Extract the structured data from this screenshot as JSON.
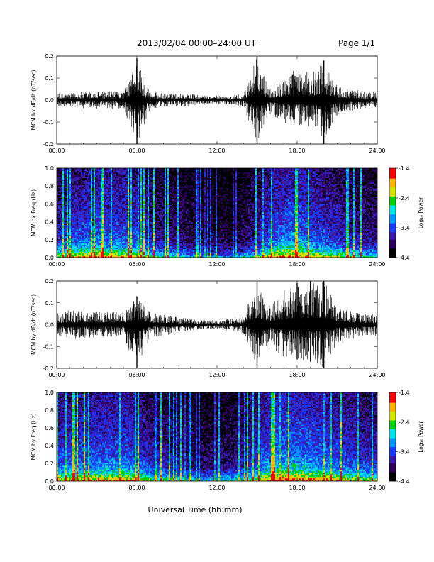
{
  "header": {
    "title": "2013/02/04  00:00–24:00 UT",
    "page": "Page 1/1"
  },
  "xlabel": "Universal Time (hh:mm)",
  "colors": {
    "trace": "#000000",
    "colorscale": [
      "#000000",
      "#2a005a",
      "#3a1aa8",
      "#1a3aff",
      "#0096ff",
      "#00e6e6",
      "#00d200",
      "#d2e600",
      "#ffb400",
      "#ff0000"
    ]
  },
  "chart_data": [
    {
      "type": "line",
      "ylabel": "MCM bx dB/dt (nT/sec)",
      "xlim": [
        0,
        24
      ],
      "ylim": [
        -0.2,
        0.2
      ],
      "xticks": [
        "00:00",
        "06:00",
        "12:00",
        "18:00",
        "24:00"
      ],
      "yticks": [
        "-0.2",
        "-0.1",
        "0.0",
        "0.1",
        "0.2"
      ],
      "series": [
        {
          "x": [
            0,
            1,
            2,
            3,
            4,
            5,
            6,
            7,
            8,
            9,
            10,
            11,
            12,
            13,
            14,
            15,
            16,
            17,
            18,
            19,
            20,
            21,
            22,
            23,
            24
          ],
          "y_max": [
            0.03,
            0.03,
            0.04,
            0.04,
            0.04,
            0.04,
            0.19,
            0.04,
            0.03,
            0.03,
            0.03,
            0.02,
            0.02,
            0.02,
            0.03,
            0.2,
            0.05,
            0.12,
            0.15,
            0.12,
            0.18,
            0.07,
            0.05,
            0.04,
            0.04
          ],
          "y_min": [
            -0.03,
            -0.03,
            -0.04,
            -0.04,
            -0.04,
            -0.04,
            -0.2,
            -0.04,
            -0.03,
            -0.03,
            -0.03,
            -0.02,
            -0.02,
            -0.02,
            -0.03,
            -0.2,
            -0.06,
            -0.11,
            -0.12,
            -0.13,
            -0.2,
            -0.07,
            -0.05,
            -0.04,
            -0.04
          ]
        }
      ]
    },
    {
      "type": "heatmap",
      "ylabel": "MCM bx Freq (Hz)",
      "xlim": [
        0,
        24
      ],
      "ylim": [
        0,
        1
      ],
      "xticks": [
        "00:00",
        "06:00",
        "12:00",
        "18:00",
        "24:00"
      ],
      "yticks": [
        "0.0",
        "0.2",
        "0.4",
        "0.6",
        "0.8",
        "1.0"
      ],
      "colorbar": {
        "label": "Log₁₀ Power",
        "range": [
          -4.4,
          -1.4
        ],
        "ticks": [
          "-1.4",
          "-2.4",
          "-3.4",
          "-4.4"
        ]
      },
      "activity_hours": [
        0.6,
        0.7,
        0.75,
        0.8,
        0.75,
        0.75,
        0.7,
        0.55,
        0.5,
        0.45,
        0.4,
        0.35,
        0.35,
        0.3,
        0.4,
        0.55,
        0.75,
        0.85,
        0.85,
        0.75,
        0.7,
        0.65,
        0.55,
        0.5,
        0.5
      ]
    },
    {
      "type": "line",
      "ylabel": "MCM by dB/dt (nT/sec)",
      "xlim": [
        0,
        24
      ],
      "ylim": [
        -0.2,
        0.2
      ],
      "xticks": [
        "00:00",
        "06:00",
        "12:00",
        "18:00",
        "24:00"
      ],
      "yticks": [
        "-0.2",
        "-0.1",
        "0.0",
        "0.1",
        "0.2"
      ],
      "series": [
        {
          "x": [
            0,
            1,
            2,
            3,
            4,
            5,
            6,
            7,
            8,
            9,
            10,
            11,
            12,
            13,
            14,
            15,
            16,
            17,
            18,
            19,
            20,
            21,
            22,
            23,
            24
          ],
          "y_max": [
            0.05,
            0.07,
            0.06,
            0.06,
            0.06,
            0.06,
            0.13,
            0.06,
            0.05,
            0.04,
            0.03,
            0.02,
            0.02,
            0.03,
            0.04,
            0.2,
            0.1,
            0.16,
            0.19,
            0.2,
            0.2,
            0.1,
            0.07,
            0.05,
            0.05
          ],
          "y_min": [
            -0.05,
            -0.07,
            -0.06,
            -0.06,
            -0.06,
            -0.06,
            -0.2,
            -0.06,
            -0.05,
            -0.04,
            -0.03,
            -0.02,
            -0.02,
            -0.03,
            -0.04,
            -0.2,
            -0.1,
            -0.15,
            -0.16,
            -0.17,
            -0.2,
            -0.1,
            -0.07,
            -0.05,
            -0.05
          ]
        }
      ]
    },
    {
      "type": "heatmap",
      "ylabel": "MCM by Freq (Hz)",
      "xlim": [
        0,
        24
      ],
      "ylim": [
        0,
        1
      ],
      "xticks": [
        "00:00",
        "06:00",
        "12:00",
        "18:00",
        "24:00"
      ],
      "yticks": [
        "0.0",
        "0.2",
        "0.4",
        "0.6",
        "0.8",
        "1.0"
      ],
      "colorbar": {
        "label": "Log₁₀ Power",
        "range": [
          -4.4,
          -1.4
        ],
        "ticks": [
          "-1.4",
          "-2.4",
          "-3.4",
          "-4.4"
        ]
      },
      "activity_hours": [
        0.7,
        0.75,
        0.8,
        0.8,
        0.8,
        0.8,
        0.75,
        0.6,
        0.55,
        0.5,
        0.45,
        0.4,
        0.45,
        0.45,
        0.55,
        0.7,
        0.85,
        0.9,
        0.9,
        0.85,
        0.8,
        0.75,
        0.7,
        0.65,
        0.65
      ]
    }
  ]
}
